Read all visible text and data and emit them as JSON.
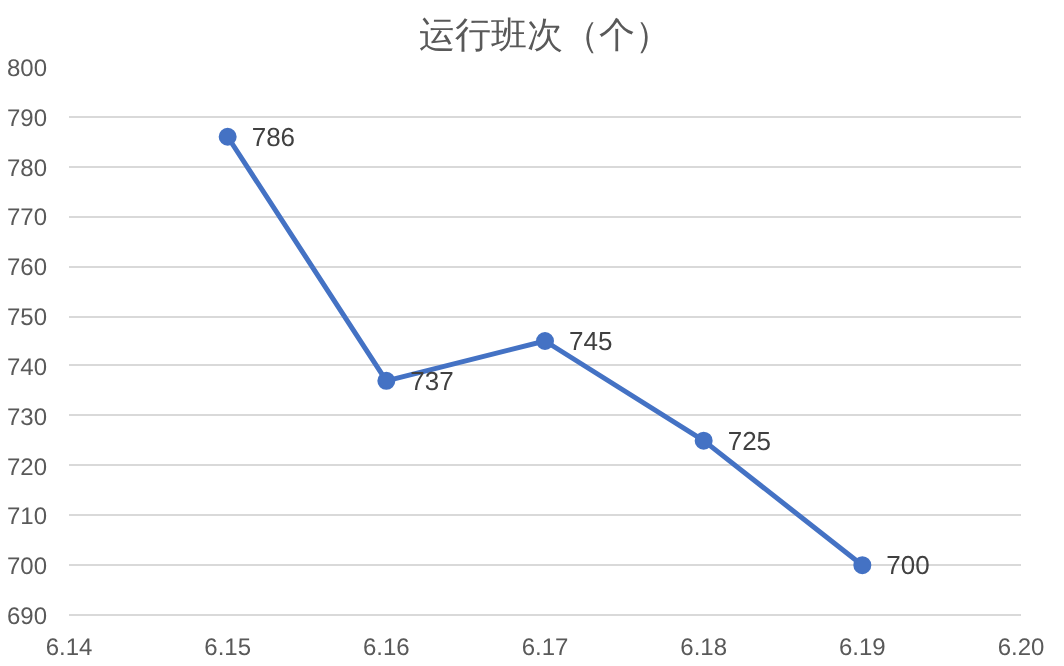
{
  "chart_data": {
    "type": "line",
    "title": "运行班次（个）",
    "x": [
      6.15,
      6.16,
      6.17,
      6.18,
      6.19
    ],
    "series": [
      {
        "color": "#4472c4",
        "values": [
          786,
          737,
          745,
          725,
          700
        ]
      }
    ],
    "xlim": [
      6.14,
      6.2
    ],
    "xticks": [
      6.14,
      6.15,
      6.16,
      6.17,
      6.18,
      6.19,
      {
        "value": 6.2,
        "label": "6.20"
      }
    ],
    "ylim": [
      690,
      800
    ],
    "yticks": [
      690,
      700,
      710,
      720,
      730,
      740,
      750,
      760,
      770,
      780,
      790,
      800
    ],
    "grid": "y",
    "marker": "circle",
    "line_style": "solid",
    "data_labels": true
  }
}
